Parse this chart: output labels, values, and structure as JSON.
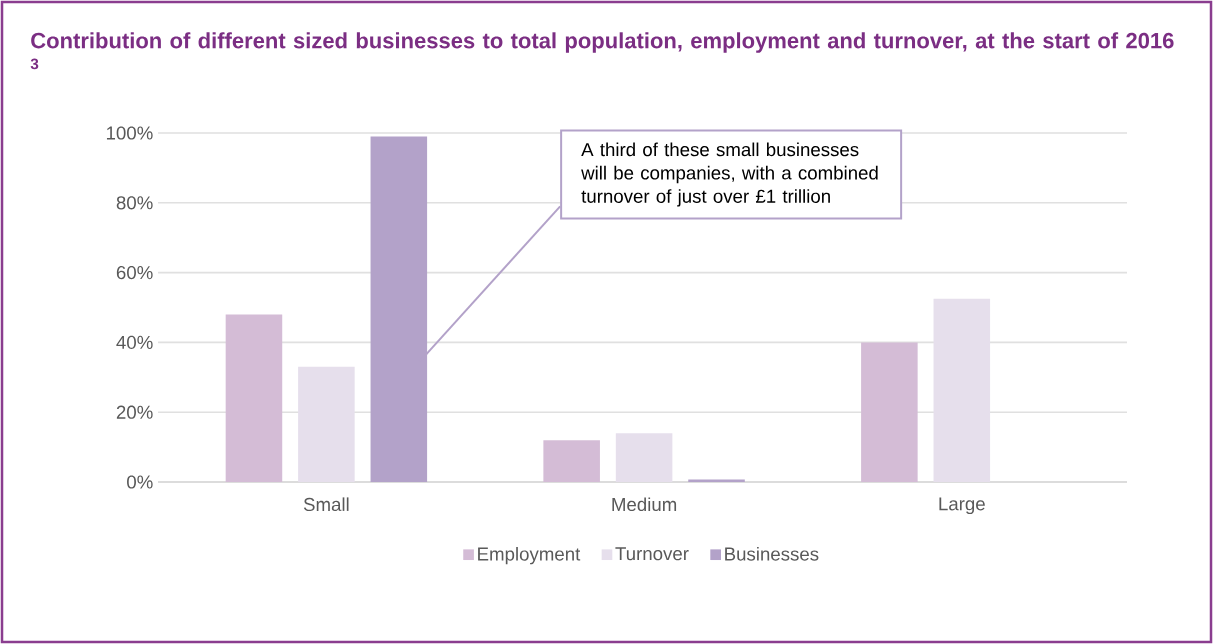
{
  "chart_data": {
    "type": "bar",
    "title": "Contribution of different sized businesses to total population, employment and turnover, at the start of 2016 $^{3}$",
    "categories": [
      "Small",
      "Medium",
      "Large"
    ],
    "series": [
      {
        "name": "Employment",
        "color": "#d4bcd6",
        "values": [
          48,
          12,
          40
        ]
      },
      {
        "name": "Turnover",
        "color": "#e6dfec",
        "values": [
          33,
          14,
          52.5
        ]
      },
      {
        "name": "Businesses",
        "color": "#b3a2c9",
        "values": [
          99,
          0.7,
          0
        ]
      }
    ],
    "ylim": [
      0,
      100
    ],
    "yticks": [
      {
        "value": 0,
        "label": "0%"
      },
      {
        "value": 20,
        "label": "20%"
      },
      {
        "value": 40,
        "label": "40%"
      },
      {
        "value": 60,
        "label": "60%"
      },
      {
        "value": 80,
        "label": "80%"
      },
      {
        "value": 100,
        "label": "100%"
      }
    ],
    "grid": "y",
    "legend": "bottom",
    "annotations": [
      "A third of these small businesses will be companies, with a combined turnover of just over £1 trillion"
    ]
  }
}
